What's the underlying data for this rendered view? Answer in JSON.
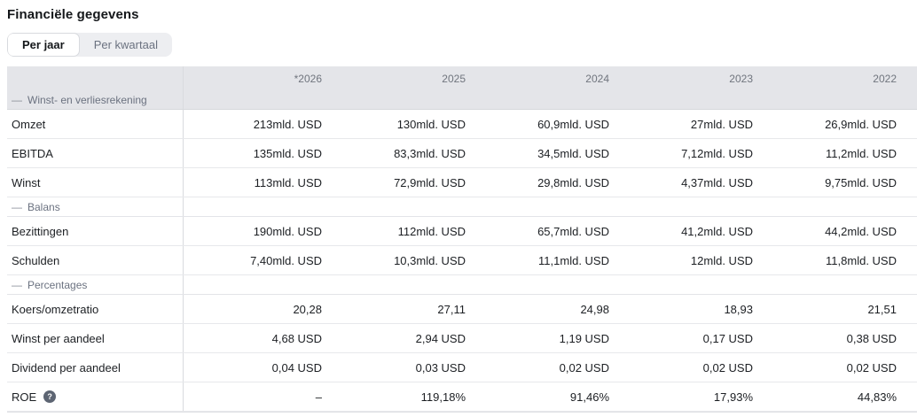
{
  "page": {
    "title": "Financiële gegevens"
  },
  "tabs": [
    {
      "label": "Per jaar",
      "active": true
    },
    {
      "label": "Per kwartaal",
      "active": false
    }
  ],
  "table": {
    "collapse_icon": "—",
    "year_columns": [
      "*2026",
      "2025",
      "2024",
      "2023",
      "2022"
    ],
    "sections": [
      {
        "label": "Winst- en verliesrekening",
        "rows": [
          {
            "label": "Omzet",
            "values": [
              "213mld. USD",
              "130mld. USD",
              "60,9mld. USD",
              "27mld. USD",
              "26,9mld. USD"
            ]
          },
          {
            "label": "EBITDA",
            "values": [
              "135mld. USD",
              "83,3mld. USD",
              "34,5mld. USD",
              "7,12mld. USD",
              "11,2mld. USD"
            ]
          },
          {
            "label": "Winst",
            "values": [
              "113mld. USD",
              "72,9mld. USD",
              "29,8mld. USD",
              "4,37mld. USD",
              "9,75mld. USD"
            ]
          }
        ]
      },
      {
        "label": "Balans",
        "rows": [
          {
            "label": "Bezittingen",
            "values": [
              "190mld. USD",
              "112mld. USD",
              "65,7mld. USD",
              "41,2mld. USD",
              "44,2mld. USD"
            ]
          },
          {
            "label": "Schulden",
            "values": [
              "7,40mld. USD",
              "10,3mld. USD",
              "11,1mld. USD",
              "12mld. USD",
              "11,8mld. USD"
            ]
          }
        ]
      },
      {
        "label": "Percentages",
        "rows": [
          {
            "label": "Koers/omzetratio",
            "values": [
              "20,28",
              "27,11",
              "24,98",
              "18,93",
              "21,51"
            ]
          },
          {
            "label": "Winst per aandeel",
            "values": [
              "4,68 USD",
              "2,94 USD",
              "1,19 USD",
              "0,17 USD",
              "0,38 USD"
            ]
          },
          {
            "label": "Dividend per aandeel",
            "values": [
              "0,04 USD",
              "0,03 USD",
              "0,02 USD",
              "0,02 USD",
              "0,02 USD"
            ]
          },
          {
            "label": "ROE",
            "info_icon": "?",
            "values": [
              "–",
              "119,18%",
              "91,46%",
              "17,93%",
              "44,83%"
            ]
          }
        ]
      }
    ]
  },
  "colors": {
    "header_bg": "#e4e5e9",
    "row_border": "#e7e8eb",
    "muted_text": "#6b7280",
    "dark_text": "#1c1f23",
    "info_icon_bg": "#5d6573"
  }
}
